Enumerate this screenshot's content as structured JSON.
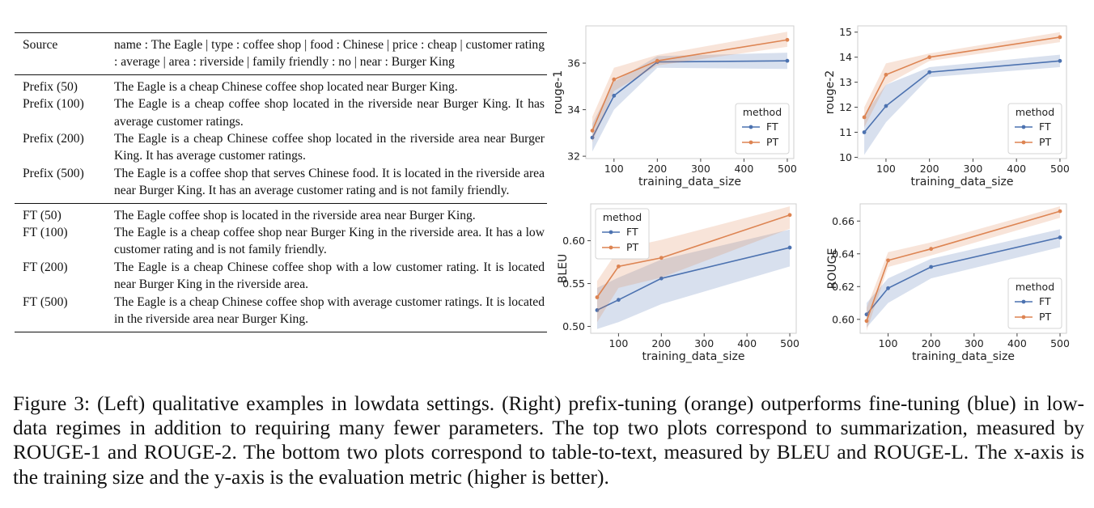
{
  "table": {
    "source_row": {
      "label": "Source",
      "text": "name : The Eagle | type : coffee shop | food : Chinese | price : cheap | customer rating : average | area : riverside | family friendly : no | near : Burger King"
    },
    "prefix_rows": [
      {
        "label": "Prefix (50)",
        "text": "The Eagle is a cheap Chinese coffee shop located near Burger King."
      },
      {
        "label": "Prefix (100)",
        "text": "The Eagle is a cheap coffee shop located in the riverside near Burger King. It has average customer ratings."
      },
      {
        "label": "Prefix (200)",
        "text": "The Eagle is a cheap Chinese coffee shop located in the riverside area near Burger King. It has average customer ratings."
      },
      {
        "label": "Prefix (500)",
        "text": "The Eagle is a coffee shop that serves Chinese food. It is located in the riverside area near Burger King. It has an average customer rating and is not family friendly."
      }
    ],
    "ft_rows": [
      {
        "label": "FT (50)",
        "text": "The Eagle coffee shop is located in the riverside area near Burger King."
      },
      {
        "label": "FT (100)",
        "text": "The Eagle is a cheap coffee shop near Burger King in the riverside area. It has a low customer rating and is not family friendly."
      },
      {
        "label": "FT (200)",
        "text": "The Eagle is a cheap Chinese coffee shop with a low customer rating. It is located near Burger King in the riverside area."
      },
      {
        "label": "FT (500)",
        "text": "The Eagle is a cheap Chinese coffee shop with average customer ratings. It is located in the riverside area near Burger King."
      }
    ]
  },
  "caption": "Figure 3: (Left) qualitative examples in lowdata settings. (Right) prefix-tuning (orange) outperforms fine-tuning (blue) in low-data regimes in addition to requiring many fewer parameters. The top two plots correspond to summarization, measured by ROUGE-1 and ROUGE-2. The bottom two plots correspond to table-to-text, measured by BLEU and ROUGE-L. The x-axis is the training size and the y-axis is the evaluation metric (higher is better).",
  "colors": {
    "FT": "#4c72b0",
    "PT": "#dd8452"
  },
  "chart_data": [
    {
      "type": "line",
      "xlabel": "training_data_size",
      "ylabel": "rouge-1",
      "x": [
        50,
        100,
        200,
        500
      ],
      "xticks": [
        "100",
        "200",
        "300",
        "400",
        "500"
      ],
      "yticks": [
        "32",
        "34",
        "36"
      ],
      "xlim": [
        35,
        515
      ],
      "ylim": [
        31.9,
        37.6
      ],
      "legend_title": "method",
      "legend_position": "lower-right",
      "series": [
        {
          "name": "FT",
          "values": [
            32.8,
            34.6,
            36.05,
            36.1
          ],
          "band_low": [
            32.2,
            34.0,
            35.8,
            35.75
          ],
          "band_high": [
            33.4,
            35.2,
            36.3,
            36.45
          ]
        },
        {
          "name": "PT",
          "values": [
            33.1,
            35.3,
            36.1,
            37.0
          ],
          "band_low": [
            32.6,
            34.8,
            35.9,
            36.7
          ],
          "band_high": [
            33.7,
            35.8,
            36.35,
            37.35
          ]
        }
      ]
    },
    {
      "type": "line",
      "xlabel": "training_data_size",
      "ylabel": "rouge-2",
      "x": [
        50,
        100,
        200,
        500
      ],
      "xticks": [
        "100",
        "200",
        "300",
        "400",
        "500"
      ],
      "yticks": [
        "10",
        "11",
        "12",
        "13",
        "14",
        "15"
      ],
      "xlim": [
        35,
        515
      ],
      "ylim": [
        9.95,
        15.25
      ],
      "legend_title": "method",
      "legend_position": "lower-right",
      "series": [
        {
          "name": "FT",
          "values": [
            11.0,
            12.05,
            13.4,
            13.85
          ],
          "band_low": [
            10.1,
            11.4,
            13.2,
            13.6
          ],
          "band_high": [
            11.7,
            12.9,
            13.6,
            14.1
          ]
        },
        {
          "name": "PT",
          "values": [
            11.6,
            13.3,
            14.0,
            14.8
          ],
          "band_low": [
            11.2,
            12.9,
            13.85,
            14.6
          ],
          "band_high": [
            12.0,
            13.75,
            14.15,
            15.0
          ]
        }
      ]
    },
    {
      "type": "line",
      "xlabel": "training_data_size",
      "ylabel": "BLEU",
      "x": [
        50,
        100,
        200,
        500
      ],
      "xticks": [
        "100",
        "200",
        "300",
        "400",
        "500"
      ],
      "yticks": [
        "0.50",
        "0.55",
        "0.60"
      ],
      "xlim": [
        35,
        515
      ],
      "ylim": [
        0.492,
        0.643
      ],
      "legend_title": "method",
      "legend_position": "upper-left",
      "series": [
        {
          "name": "FT",
          "values": [
            0.519,
            0.531,
            0.556,
            0.592
          ],
          "band_low": [
            0.497,
            0.505,
            0.526,
            0.57
          ],
          "band_high": [
            0.545,
            0.557,
            0.578,
            0.613
          ]
        },
        {
          "name": "PT",
          "values": [
            0.534,
            0.57,
            0.58,
            0.63
          ],
          "band_low": [
            0.505,
            0.545,
            0.557,
            0.614
          ],
          "band_high": [
            0.553,
            0.59,
            0.601,
            0.64
          ]
        }
      ]
    },
    {
      "type": "line",
      "xlabel": "training_data_size",
      "ylabel": "ROUGE",
      "x": [
        50,
        100,
        200,
        500
      ],
      "xticks": [
        "100",
        "200",
        "300",
        "400",
        "500"
      ],
      "yticks": [
        "0.60",
        "0.62",
        "0.64",
        "0.66"
      ],
      "xlim": [
        35,
        515
      ],
      "ylim": [
        0.5915,
        0.6705
      ],
      "legend_title": "method",
      "legend_position": "lower-right",
      "series": [
        {
          "name": "FT",
          "values": [
            0.603,
            0.619,
            0.632,
            0.65
          ],
          "band_low": [
            0.595,
            0.61,
            0.625,
            0.644
          ],
          "band_high": [
            0.61,
            0.625,
            0.637,
            0.655
          ]
        },
        {
          "name": "PT",
          "values": [
            0.599,
            0.636,
            0.643,
            0.666
          ],
          "band_low": [
            0.593,
            0.632,
            0.639,
            0.662
          ],
          "band_high": [
            0.607,
            0.641,
            0.647,
            0.669
          ]
        }
      ]
    }
  ]
}
